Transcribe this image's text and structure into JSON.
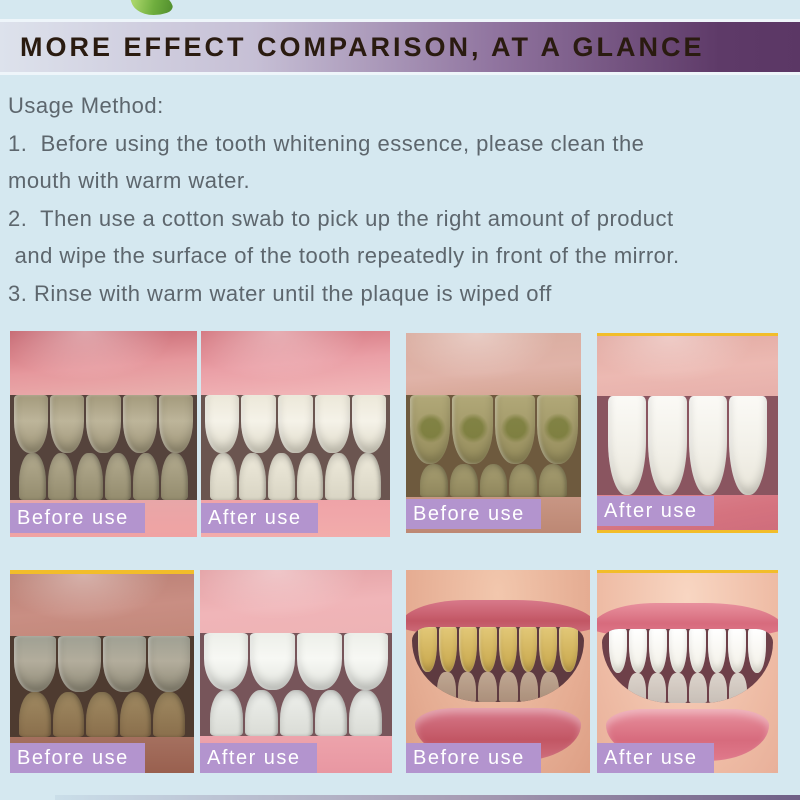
{
  "page": {
    "background_color": "#d5e8f0"
  },
  "header": {
    "title": "MORE EFFECT COMPARISON, AT A GLANCE",
    "gradient_left_color": "#dde2ec",
    "gradient_right_color": "#5e3a68",
    "text_color": "#2a1b10",
    "leaf_icon_color": "#6fae3e"
  },
  "usage": {
    "heading": "Usage Method:",
    "lines": [
      "1.  Before using the tooth whitening essence, please clean the",
      "mouth with warm water.",
      "2.  Then use a cotton swab to pick up the right amount of product",
      " and wipe the surface of the tooth repeatedly in front of the mirror.",
      "3. Rinse with warm water until the plaque is wiped off"
    ]
  },
  "comparisons": [
    {
      "position": "top-left",
      "before_label": "Before use",
      "after_label": "After use"
    },
    {
      "position": "top-right",
      "before_label": "Before use",
      "after_label": "After use"
    },
    {
      "position": "bottom-left",
      "before_label": "Before use",
      "after_label": "After use"
    },
    {
      "position": "bottom-right",
      "before_label": "Before use",
      "after_label": "After use"
    }
  ],
  "label_style": {
    "background_color": "#b394ce",
    "text_color": "#ffffff"
  },
  "accents": {
    "frame_yellow": "#f2bd2a",
    "footer_bar_color": "#6f5f86"
  }
}
